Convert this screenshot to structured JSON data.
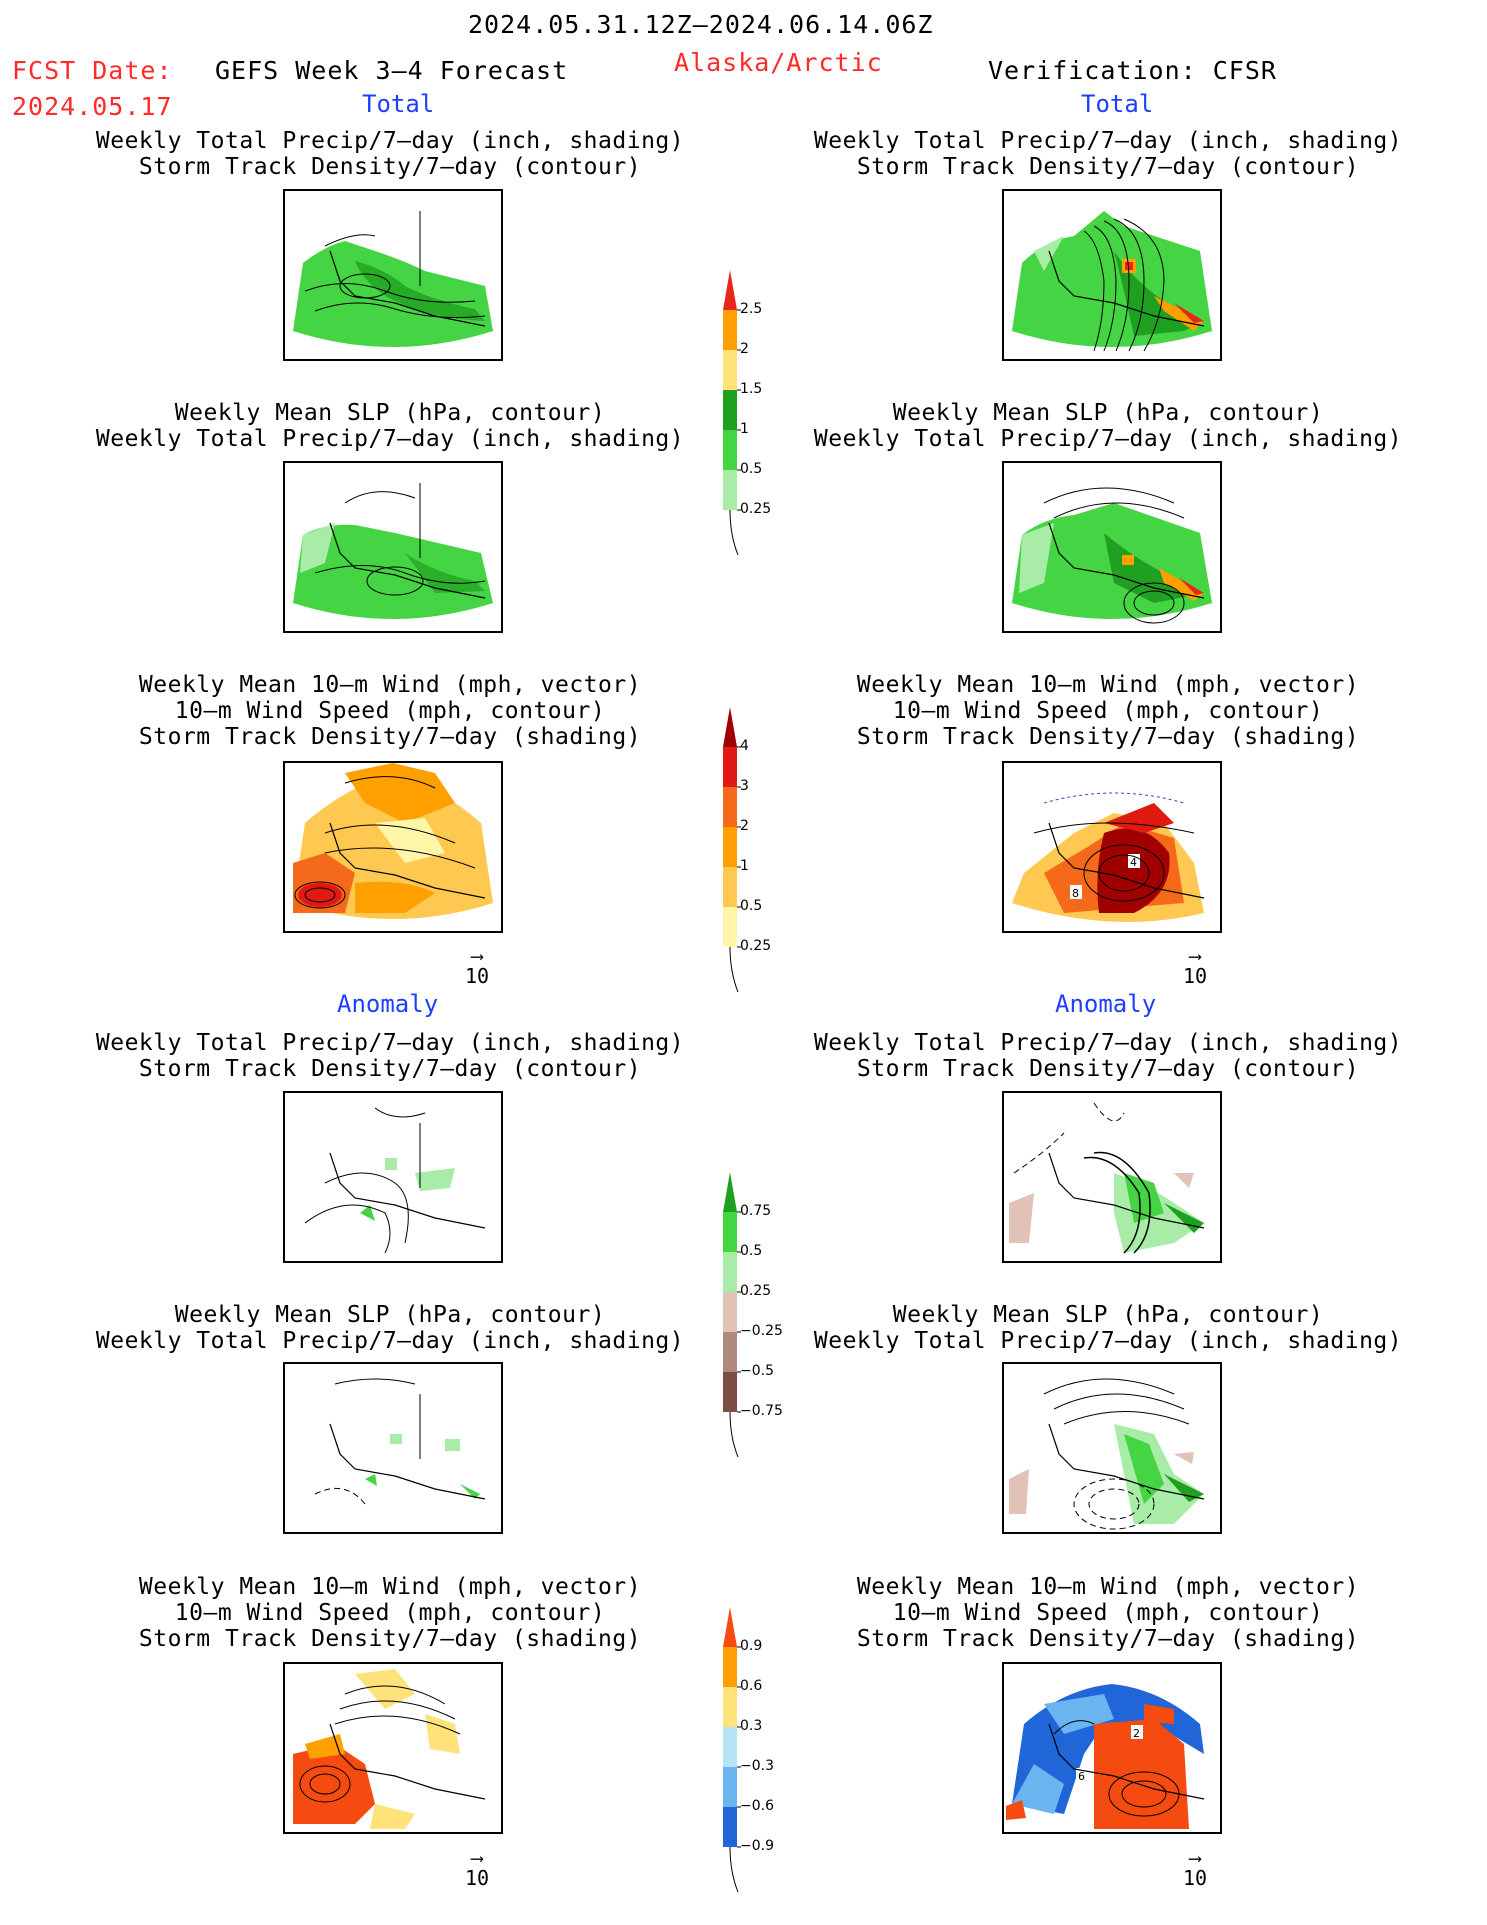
{
  "header": {
    "period": "2024.05.31.12Z–2024.06.14.06Z",
    "fcst_label": "FCST Date:",
    "fcst_date": "2024.05.17",
    "model": "GEFS Week 3–4 Forecast",
    "region": "Alaska/Arctic",
    "verification": "Verification: CFSR"
  },
  "sections": {
    "total_left": "Total",
    "total_right": "Total",
    "anomaly_left": "Anomaly",
    "anomaly_right": "Anomaly"
  },
  "panel_titles": {
    "precip_track": [
      "Weekly Total Precip/7–day (inch, shading)",
      "Storm Track Density/7–day (contour)"
    ],
    "slp_precip": [
      "Weekly Mean SLP (hPa, contour)",
      "Weekly Total Precip/7–day (inch, shading)"
    ],
    "wind_track": [
      "Weekly Mean 10–m Wind (mph, vector)",
      "10–m Wind Speed (mph, contour)",
      "Storm Track Density/7–day (shading)"
    ]
  },
  "vector_scale_label": "10",
  "colorbars": {
    "precip_total": {
      "labels": [
        "2.5",
        "2",
        "1.5",
        "1",
        "0.5",
        "0.25"
      ],
      "colors": [
        "#e8261c",
        "#ffa000",
        "#ffe27a",
        "#20a020",
        "#44d444",
        "#a8eca8"
      ]
    },
    "track_total": {
      "labels": [
        "4",
        "3",
        "2",
        "1",
        "0.5",
        "0.25"
      ],
      "colors": [
        "#a00000",
        "#e01a10",
        "#f56a1a",
        "#ffa000",
        "#ffc850",
        "#fff6a8"
      ]
    },
    "precip_anom": {
      "labels": [
        "0.75",
        "0.5",
        "0.25",
        "−0.25",
        "−0.5",
        "−0.75"
      ],
      "colors": [
        "#20a020",
        "#44d444",
        "#a8eca8",
        "#e2c2b6",
        "#b08a7e",
        "#7a4e42"
      ]
    },
    "track_anom": {
      "labels": [
        "0.9",
        "0.6",
        "0.3",
        "−0.3",
        "−0.6",
        "−0.9"
      ],
      "colors": [
        "#f54a10",
        "#ffa000",
        "#ffe27a",
        "#b4e4f6",
        "#6ab4f0",
        "#2066d8"
      ]
    }
  },
  "contour_labels": {
    "obs_wind_total": [
      "4",
      "8"
    ],
    "obs_wind_anom": [
      "2",
      "6"
    ]
  }
}
